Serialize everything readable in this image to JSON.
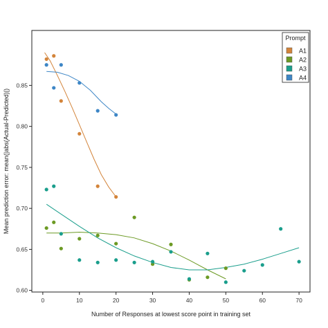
{
  "chart_data": {
    "type": "scatter",
    "xlabel": "Number of Responses at lowest score point in training set",
    "ylabel": "Mean prediction error: mean(|abs(Actual-Predicted)|)",
    "xlim": [
      -3,
      73
    ],
    "ylim": [
      0.598,
      0.917
    ],
    "x_ticks": [
      0,
      10,
      20,
      30,
      40,
      50,
      60,
      70
    ],
    "y_ticks": [
      0.6,
      0.65,
      0.7,
      0.75,
      0.8,
      0.85
    ],
    "x_tick_labels": [
      "0",
      "10",
      "20",
      "30",
      "40",
      "50",
      "60",
      "70"
    ],
    "y_tick_labels": [
      "0.60",
      "0.65",
      "0.70",
      "0.75",
      "0.80",
      "0.85"
    ],
    "grid": false,
    "legend_position": "top-right",
    "legend_title": "Prompt",
    "series": [
      {
        "name": "A1",
        "color": "#d3843a",
        "points": [
          [
            1,
            0.882
          ],
          [
            3,
            0.886
          ],
          [
            5,
            0.831
          ],
          [
            10,
            0.791
          ],
          [
            15,
            0.727
          ],
          [
            20,
            0.714
          ]
        ],
        "trend": [
          [
            0.5,
            0.89
          ],
          [
            2,
            0.88
          ],
          [
            4,
            0.862
          ],
          [
            6,
            0.843
          ],
          [
            8,
            0.823
          ],
          [
            10,
            0.802
          ],
          [
            12,
            0.781
          ],
          [
            14,
            0.76
          ],
          [
            16,
            0.741
          ],
          [
            18,
            0.726
          ],
          [
            20,
            0.714
          ]
        ]
      },
      {
        "name": "A2",
        "color": "#6c9a24",
        "points": [
          [
            1,
            0.676
          ],
          [
            3,
            0.683
          ],
          [
            5,
            0.651
          ],
          [
            10,
            0.663
          ],
          [
            15,
            0.667
          ],
          [
            20,
            0.657
          ],
          [
            25,
            0.689
          ],
          [
            30,
            0.632
          ],
          [
            35,
            0.656
          ],
          [
            40,
            0.613
          ],
          [
            45,
            0.616
          ],
          [
            50,
            0.627
          ]
        ],
        "trend": [
          [
            1,
            0.67
          ],
          [
            5,
            0.67
          ],
          [
            10,
            0.671
          ],
          [
            15,
            0.67
          ],
          [
            20,
            0.668
          ],
          [
            25,
            0.664
          ],
          [
            30,
            0.657
          ],
          [
            35,
            0.648
          ],
          [
            40,
            0.637
          ],
          [
            45,
            0.625
          ],
          [
            50,
            0.614
          ]
        ]
      },
      {
        "name": "A3",
        "color": "#1a9e8c",
        "points": [
          [
            1,
            0.723
          ],
          [
            3,
            0.727
          ],
          [
            5,
            0.669
          ],
          [
            10,
            0.637
          ],
          [
            15,
            0.634
          ],
          [
            20,
            0.637
          ],
          [
            25,
            0.634
          ],
          [
            30,
            0.635
          ],
          [
            35,
            0.647
          ],
          [
            40,
            0.614
          ],
          [
            45,
            0.645
          ],
          [
            50,
            0.61
          ],
          [
            55,
            0.624
          ],
          [
            60,
            0.631
          ],
          [
            65,
            0.675
          ],
          [
            70,
            0.635
          ]
        ],
        "trend": [
          [
            1,
            0.705
          ],
          [
            5,
            0.693
          ],
          [
            10,
            0.678
          ],
          [
            15,
            0.664
          ],
          [
            20,
            0.652
          ],
          [
            25,
            0.642
          ],
          [
            30,
            0.634
          ],
          [
            35,
            0.628
          ],
          [
            40,
            0.625
          ],
          [
            45,
            0.625
          ],
          [
            50,
            0.628
          ],
          [
            55,
            0.632
          ],
          [
            60,
            0.638
          ],
          [
            65,
            0.645
          ],
          [
            70,
            0.652
          ]
        ]
      },
      {
        "name": "A4",
        "color": "#3d86c6",
        "points": [
          [
            1,
            0.875
          ],
          [
            3,
            0.847
          ],
          [
            5,
            0.875
          ],
          [
            10,
            0.853
          ],
          [
            15,
            0.819
          ],
          [
            20,
            0.814
          ]
        ],
        "trend": [
          [
            1,
            0.867
          ],
          [
            4,
            0.866
          ],
          [
            7,
            0.862
          ],
          [
            10,
            0.855
          ],
          [
            13,
            0.844
          ],
          [
            16,
            0.83
          ],
          [
            18,
            0.822
          ],
          [
            20,
            0.815
          ]
        ]
      }
    ]
  }
}
